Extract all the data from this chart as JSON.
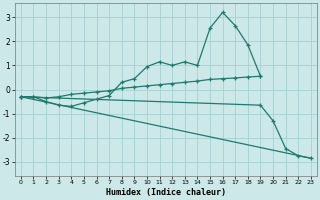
{
  "xlabel": "Humidex (Indice chaleur)",
  "color": "#1e7a6e",
  "bg_color": "#cce8e8",
  "grid_color": "#9ecece",
  "ylim": [
    -3.6,
    3.6
  ],
  "xlim": [
    -0.5,
    23.5
  ],
  "yticks": [
    -3,
    -2,
    -1,
    0,
    1,
    2,
    3
  ],
  "xticks": [
    0,
    1,
    2,
    3,
    4,
    5,
    6,
    7,
    8,
    9,
    10,
    11,
    12,
    13,
    14,
    15,
    16,
    17,
    18,
    19,
    20,
    21,
    22,
    23
  ],
  "line1_x": [
    0,
    1,
    2,
    3,
    4,
    5,
    6,
    7,
    8,
    9,
    10,
    11,
    12,
    13,
    14,
    15,
    16,
    17,
    18,
    19
  ],
  "line1_y": [
    -0.3,
    -0.3,
    -0.5,
    -0.65,
    -0.7,
    -0.55,
    -0.4,
    -0.25,
    0.3,
    0.45,
    0.95,
    1.15,
    1.0,
    1.15,
    1.0,
    2.55,
    3.2,
    2.65,
    1.85,
    0.55
  ],
  "line2_x": [
    0,
    1,
    2,
    3,
    4,
    5,
    6,
    7,
    8,
    9,
    10,
    11,
    12,
    13,
    14,
    15,
    16,
    17,
    18,
    19
  ],
  "line2_y": [
    -0.3,
    -0.3,
    -0.35,
    -0.3,
    -0.2,
    -0.15,
    -0.1,
    -0.05,
    0.05,
    0.1,
    0.15,
    0.2,
    0.25,
    0.3,
    0.35,
    0.42,
    0.45,
    0.48,
    0.52,
    0.55
  ],
  "line3_x": [
    0,
    19,
    20,
    21,
    22,
    23
  ],
  "line3_y": [
    -0.3,
    -0.65,
    -1.3,
    -2.45,
    -2.75,
    -2.85
  ],
  "line4_x": [
    0,
    23
  ],
  "line4_y": [
    -0.3,
    -2.85
  ]
}
